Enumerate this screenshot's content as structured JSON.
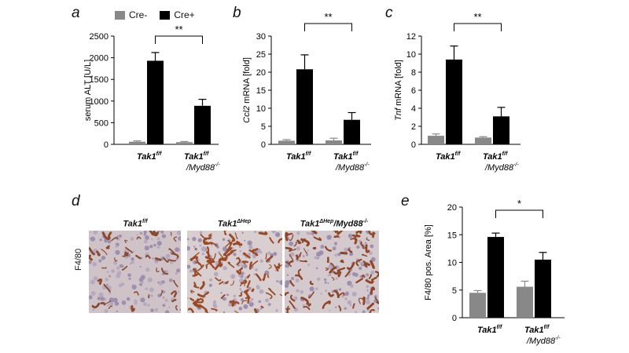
{
  "panels": {
    "a": "a",
    "b": "b",
    "c": "c",
    "d": "d",
    "e": "e"
  },
  "legend": [
    {
      "label": "Cre-",
      "color": "#888888"
    },
    {
      "label": "Cre+",
      "color": "#000000"
    }
  ],
  "colors": {
    "cre_minus": "#888888",
    "cre_plus": "#000000"
  },
  "microscopy": {
    "stain_label": "F4/80",
    "titles": [
      "Tak1f/f",
      "Tak1ΔHep",
      "Tak1ΔHep/Myd88-/-"
    ]
  },
  "chart_data": [
    {
      "id": "a",
      "type": "bar",
      "ylabel": "serum ALT [U/L]",
      "ylim": [
        0,
        2500
      ],
      "yticks": [
        0,
        500,
        1000,
        1500,
        2000,
        2500
      ],
      "categories": [
        "Tak1f/f",
        "Tak1f/f/Myd88-/-"
      ],
      "series": [
        {
          "name": "Cre-",
          "values": [
            60,
            50
          ],
          "errors": [
            20,
            15
          ]
        },
        {
          "name": "Cre+",
          "values": [
            1930,
            890
          ],
          "errors": [
            190,
            150
          ]
        }
      ],
      "significance": {
        "label": "**",
        "between": "Cre+"
      }
    },
    {
      "id": "b",
      "type": "bar",
      "ylabel": "Ccl2 mRNA [fold]",
      "ylim": [
        0,
        30
      ],
      "yticks": [
        0,
        5,
        10,
        15,
        20,
        25,
        30
      ],
      "categories": [
        "Tak1f/f",
        "Tak1f/f/Myd88-/-"
      ],
      "series": [
        {
          "name": "Cre-",
          "values": [
            1.0,
            1.1
          ],
          "errors": [
            0.3,
            0.6
          ]
        },
        {
          "name": "Cre+",
          "values": [
            20.8,
            6.8
          ],
          "errors": [
            4.0,
            2.0
          ]
        }
      ],
      "significance": {
        "label": "**",
        "between": "Cre+"
      }
    },
    {
      "id": "c",
      "type": "bar",
      "ylabel": "Tnf mRNA [fold]",
      "ylim": [
        0,
        12
      ],
      "yticks": [
        0,
        2,
        4,
        6,
        8,
        10,
        12
      ],
      "categories": [
        "Tak1f/f",
        "Tak1f/f/Myd88-/-"
      ],
      "series": [
        {
          "name": "Cre-",
          "values": [
            0.95,
            0.75
          ],
          "errors": [
            0.2,
            0.1
          ]
        },
        {
          "name": "Cre+",
          "values": [
            9.4,
            3.1
          ],
          "errors": [
            1.5,
            1.0
          ]
        }
      ],
      "significance": {
        "label": "**",
        "between": "Cre+"
      }
    },
    {
      "id": "e",
      "type": "bar",
      "ylabel": "F4/80 pos. Area  [%]",
      "ylim": [
        0,
        20
      ],
      "yticks": [
        0,
        5,
        10,
        15,
        20
      ],
      "categories": [
        "Tak1f/f",
        "Tak1f/f/Myd88-/-"
      ],
      "series": [
        {
          "name": "Cre-",
          "values": [
            4.5,
            5.6
          ],
          "errors": [
            0.4,
            1.0
          ]
        },
        {
          "name": "Cre+",
          "values": [
            14.6,
            10.5
          ],
          "errors": [
            0.7,
            1.3
          ]
        }
      ],
      "significance": {
        "label": "*",
        "between": "Cre+"
      }
    }
  ]
}
